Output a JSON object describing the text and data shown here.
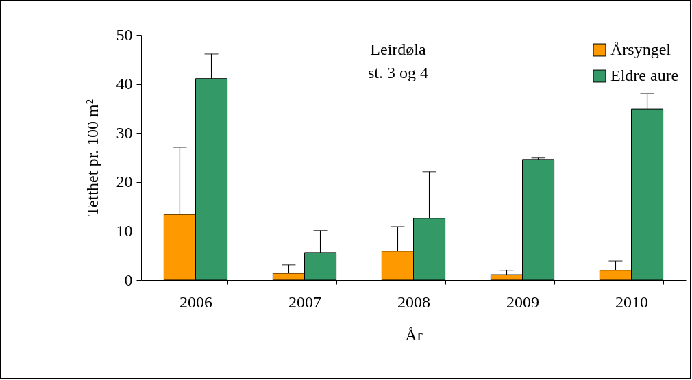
{
  "chart_data": {
    "type": "bar",
    "title": "Leirdøla",
    "subtitle": "st. 3 og 4",
    "xlabel": "År",
    "ylabel": "Tetthet pr. 100 m²",
    "categories": [
      "2006",
      "2007",
      "2008",
      "2009",
      "2010"
    ],
    "series": [
      {
        "name": "Årsyngel",
        "color": "#ff9900",
        "values": [
          13.4,
          1.4,
          5.9,
          1.1,
          2.0
        ],
        "errors": [
          [
            13.4,
            27.1
          ],
          [
            1.4,
            3.1
          ],
          [
            5.9,
            10.9
          ],
          [
            1.1,
            2.0
          ],
          [
            2.0,
            3.9
          ]
        ]
      },
      {
        "name": "Eldre aure",
        "color": "#339966",
        "values": [
          41.1,
          5.6,
          12.6,
          24.6,
          34.9
        ],
        "errors": [
          [
            41.1,
            46.1
          ],
          [
            5.6,
            10.1
          ],
          [
            12.6,
            22.1
          ],
          [
            24.6,
            24.9
          ],
          [
            34.9,
            38.0
          ]
        ]
      }
    ],
    "ylim": [
      0,
      50
    ],
    "yticks": [
      0,
      10,
      20,
      30,
      40,
      50
    ],
    "grid": false,
    "legend": "top right"
  }
}
